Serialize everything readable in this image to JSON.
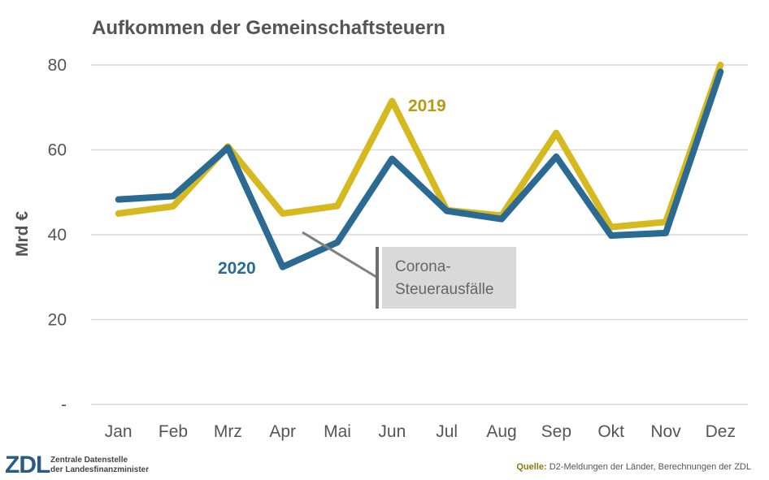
{
  "chart_data": {
    "type": "line",
    "title": "Aufkommen der Gemeinschaftsteuern",
    "ylabel": "Mrd €",
    "xlabel": "",
    "categories": [
      "Jan",
      "Feb",
      "Mrz",
      "Apr",
      "Mai",
      "Jun",
      "Jul",
      "Aug",
      "Sep",
      "Okt",
      "Nov",
      "Dez"
    ],
    "ylim": [
      0,
      80
    ],
    "yticks": [
      {
        "value": 0,
        "label": "-"
      },
      {
        "value": 20,
        "label": "20"
      },
      {
        "value": 40,
        "label": "40"
      },
      {
        "value": 60,
        "label": "60"
      },
      {
        "value": 80,
        "label": "80"
      }
    ],
    "grid": true,
    "series": [
      {
        "name": "2019",
        "color": "#d6b91f",
        "values": [
          45.0,
          46.7,
          60.8,
          45.0,
          46.8,
          71.5,
          45.8,
          44.5,
          64.0,
          41.8,
          43.0,
          80.0
        ]
      },
      {
        "name": "2020",
        "color": "#2a6a93",
        "values": [
          48.3,
          49.1,
          60.5,
          32.4,
          38.2,
          57.9,
          45.6,
          43.7,
          58.4,
          39.8,
          40.4,
          78.4
        ]
      }
    ],
    "annotation": {
      "lines": [
        "Corona-",
        "Steuerausfälle"
      ]
    }
  },
  "source": {
    "label": "Quelle:",
    "text": "D2-Meldungen der Länder, Berechnungen der ZDL"
  },
  "logo": {
    "mark": "ZDL",
    "line1": "Zentrale Datenstelle",
    "line2": "der Landesfinanzminister"
  }
}
